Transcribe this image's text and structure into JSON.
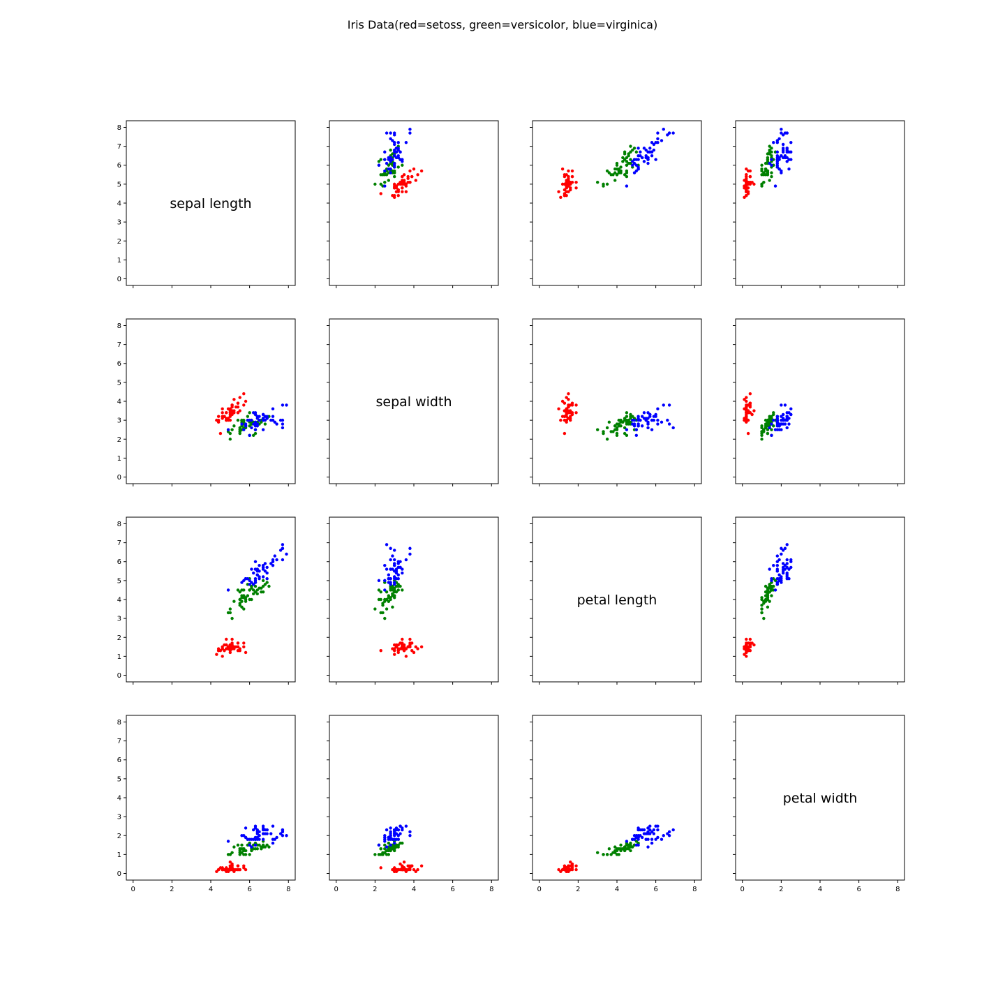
{
  "title": "Iris Data(red=setoss, green=versicolor, blue=virginica)",
  "colors": {
    "setosa": "#ff0000",
    "versicolor": "#008000",
    "virginica": "#0000ff"
  },
  "chart_data": {
    "type": "scatter",
    "layout": "scatter-matrix 4x4",
    "variables": [
      "sepal length",
      "sepal width",
      "petal length",
      "petal width"
    ],
    "xlim": [
      -0.35,
      8.35
    ],
    "ylim": [
      -0.35,
      8.35
    ],
    "ticks": [
      0,
      2,
      4,
      6,
      8
    ],
    "yticks": [
      0,
      1,
      2,
      3,
      4,
      5,
      6,
      7,
      8
    ],
    "grid": false,
    "legend": "none",
    "series": [
      {
        "color": "#ff0000",
        "sepal_length": [
          5.1,
          4.9,
          4.7,
          4.6,
          5.0,
          5.4,
          4.6,
          5.0,
          4.4,
          4.9,
          5.4,
          4.8,
          4.8,
          4.3,
          5.8,
          5.7,
          5.4,
          5.1,
          5.7,
          5.1,
          5.4,
          5.1,
          4.6,
          5.1,
          4.8,
          5.0,
          5.0,
          5.2,
          5.2,
          4.7,
          4.8,
          5.4,
          5.2,
          5.5,
          4.9,
          5.0,
          5.5,
          4.9,
          4.4,
          5.1,
          5.0,
          4.5,
          4.4,
          5.0,
          5.1,
          4.8,
          5.1,
          4.6,
          5.3,
          5.0
        ],
        "sepal_width": [
          3.5,
          3.0,
          3.2,
          3.1,
          3.6,
          3.9,
          3.4,
          3.4,
          2.9,
          3.1,
          3.7,
          3.4,
          3.0,
          3.0,
          4.0,
          4.4,
          3.9,
          3.5,
          3.8,
          3.8,
          3.4,
          3.7,
          3.6,
          3.3,
          3.4,
          3.0,
          3.4,
          3.5,
          3.4,
          3.2,
          3.1,
          3.4,
          4.1,
          4.2,
          3.1,
          3.2,
          3.5,
          3.6,
          3.0,
          3.4,
          3.5,
          2.3,
          3.2,
          3.5,
          3.8,
          3.0,
          3.8,
          3.2,
          3.7,
          3.3
        ],
        "petal_length": [
          1.4,
          1.4,
          1.3,
          1.5,
          1.4,
          1.7,
          1.4,
          1.5,
          1.4,
          1.5,
          1.5,
          1.6,
          1.4,
          1.1,
          1.2,
          1.5,
          1.3,
          1.4,
          1.7,
          1.5,
          1.7,
          1.5,
          1.0,
          1.7,
          1.9,
          1.6,
          1.6,
          1.5,
          1.4,
          1.6,
          1.6,
          1.5,
          1.5,
          1.4,
          1.5,
          1.2,
          1.3,
          1.4,
          1.3,
          1.5,
          1.3,
          1.3,
          1.3,
          1.6,
          1.9,
          1.4,
          1.6,
          1.4,
          1.5,
          1.4
        ],
        "petal_width": [
          0.2,
          0.2,
          0.2,
          0.2,
          0.2,
          0.4,
          0.3,
          0.2,
          0.2,
          0.1,
          0.2,
          0.2,
          0.1,
          0.1,
          0.2,
          0.4,
          0.4,
          0.3,
          0.3,
          0.3,
          0.2,
          0.4,
          0.2,
          0.5,
          0.2,
          0.2,
          0.4,
          0.2,
          0.2,
          0.2,
          0.2,
          0.4,
          0.1,
          0.2,
          0.2,
          0.2,
          0.2,
          0.1,
          0.2,
          0.2,
          0.3,
          0.3,
          0.2,
          0.6,
          0.4,
          0.3,
          0.2,
          0.2,
          0.2,
          0.2
        ]
      },
      {
        "color": "#008000",
        "sepal_length": [
          7.0,
          6.4,
          6.9,
          5.5,
          6.5,
          5.7,
          6.3,
          4.9,
          6.6,
          5.2,
          5.0,
          5.9,
          6.0,
          6.1,
          5.6,
          6.7,
          5.6,
          5.8,
          6.2,
          5.6,
          5.9,
          6.1,
          6.3,
          6.1,
          6.4,
          6.6,
          6.8,
          6.7,
          6.0,
          5.7,
          5.5,
          5.5,
          5.8,
          6.0,
          5.4,
          6.0,
          6.7,
          6.3,
          5.6,
          5.5,
          5.5,
          6.1,
          5.8,
          5.0,
          5.6,
          5.7,
          5.7,
          6.2,
          5.1,
          5.7
        ],
        "sepal_width": [
          3.2,
          3.2,
          3.1,
          2.3,
          2.8,
          2.8,
          3.3,
          2.4,
          2.9,
          2.7,
          2.0,
          3.0,
          2.2,
          2.9,
          2.9,
          3.1,
          3.0,
          2.7,
          2.2,
          2.5,
          3.2,
          2.8,
          2.5,
          2.8,
          2.9,
          3.0,
          2.8,
          3.0,
          2.9,
          2.6,
          2.4,
          2.4,
          2.7,
          2.7,
          3.0,
          3.4,
          3.1,
          2.3,
          3.0,
          2.5,
          2.6,
          3.0,
          2.6,
          2.3,
          2.7,
          3.0,
          2.9,
          2.9,
          2.5,
          2.8
        ],
        "petal_length": [
          4.7,
          4.5,
          4.9,
          4.0,
          4.6,
          4.5,
          4.7,
          3.3,
          4.6,
          3.9,
          3.5,
          4.2,
          4.0,
          4.7,
          3.6,
          4.4,
          4.5,
          4.1,
          4.5,
          3.9,
          4.8,
          4.0,
          4.9,
          4.7,
          4.3,
          4.4,
          4.8,
          5.0,
          4.5,
          3.5,
          3.8,
          3.7,
          3.9,
          5.1,
          4.5,
          4.5,
          4.7,
          4.4,
          4.1,
          4.0,
          4.4,
          4.6,
          4.0,
          3.3,
          4.2,
          4.2,
          4.2,
          4.3,
          3.0,
          4.1
        ],
        "petal_width": [
          1.4,
          1.5,
          1.5,
          1.3,
          1.5,
          1.3,
          1.6,
          1.0,
          1.3,
          1.4,
          1.0,
          1.5,
          1.0,
          1.4,
          1.3,
          1.4,
          1.5,
          1.0,
          1.5,
          1.1,
          1.8,
          1.3,
          1.5,
          1.2,
          1.3,
          1.4,
          1.4,
          1.7,
          1.5,
          1.0,
          1.1,
          1.0,
          1.2,
          1.6,
          1.5,
          1.6,
          1.5,
          1.3,
          1.3,
          1.3,
          1.2,
          1.4,
          1.2,
          1.0,
          1.3,
          1.2,
          1.3,
          1.3,
          1.1,
          1.3
        ]
      },
      {
        "color": "#0000ff",
        "sepal_length": [
          6.3,
          5.8,
          7.1,
          6.3,
          6.5,
          7.6,
          4.9,
          7.3,
          6.7,
          7.2,
          6.5,
          6.4,
          6.8,
          5.7,
          5.8,
          6.4,
          6.5,
          7.7,
          7.7,
          6.0,
          6.9,
          5.6,
          7.7,
          6.3,
          6.7,
          7.2,
          6.2,
          6.1,
          6.4,
          7.2,
          7.4,
          7.9,
          6.4,
          6.3,
          6.1,
          7.7,
          6.3,
          6.4,
          6.0,
          6.9,
          6.7,
          6.9,
          5.8,
          6.8,
          6.7,
          6.7,
          6.3,
          6.5,
          6.2,
          5.9
        ],
        "sepal_width": [
          3.3,
          2.7,
          3.0,
          2.9,
          3.0,
          3.0,
          2.5,
          2.9,
          2.5,
          3.6,
          3.2,
          2.7,
          3.0,
          2.5,
          2.8,
          3.2,
          3.0,
          3.8,
          2.6,
          2.2,
          3.2,
          2.8,
          2.8,
          2.7,
          3.3,
          3.2,
          2.8,
          3.0,
          2.8,
          3.0,
          2.8,
          3.8,
          2.8,
          2.8,
          2.6,
          3.0,
          3.4,
          3.1,
          3.0,
          3.1,
          3.1,
          3.1,
          2.7,
          3.2,
          3.3,
          3.0,
          2.5,
          3.0,
          3.4,
          3.0
        ],
        "petal_length": [
          6.0,
          5.1,
          5.9,
          5.6,
          5.8,
          6.6,
          4.5,
          6.3,
          5.8,
          6.1,
          5.1,
          5.3,
          5.5,
          5.0,
          5.1,
          5.3,
          5.5,
          6.7,
          6.9,
          5.0,
          5.7,
          4.9,
          6.7,
          4.9,
          5.7,
          6.0,
          4.8,
          4.9,
          5.6,
          5.8,
          6.1,
          6.4,
          5.6,
          5.1,
          5.6,
          6.1,
          5.6,
          5.5,
          4.8,
          5.4,
          5.6,
          5.1,
          5.1,
          5.9,
          5.7,
          5.2,
          5.0,
          5.2,
          5.4,
          5.1
        ],
        "petal_width": [
          2.5,
          1.9,
          2.1,
          1.8,
          2.2,
          2.1,
          1.7,
          1.8,
          1.8,
          2.5,
          2.0,
          1.9,
          2.1,
          2.0,
          2.4,
          2.3,
          1.8,
          2.2,
          2.3,
          1.5,
          2.3,
          2.0,
          2.0,
          1.8,
          2.1,
          1.8,
          1.8,
          1.8,
          2.1,
          1.6,
          1.9,
          2.0,
          2.2,
          1.5,
          1.4,
          2.3,
          2.4,
          1.8,
          1.8,
          2.1,
          2.4,
          2.3,
          1.9,
          2.3,
          2.5,
          2.3,
          1.9,
          2.0,
          2.3,
          1.8
        ]
      }
    ]
  }
}
